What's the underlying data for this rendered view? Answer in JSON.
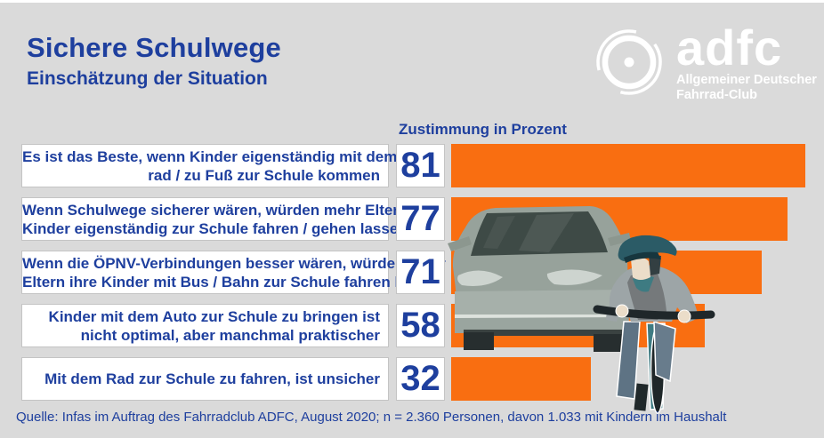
{
  "header": {
    "title": "Sichere Schulwege",
    "subtitle": "Einschätzung der Situation"
  },
  "logo": {
    "brand": "adfc",
    "tagline_line1": "Allgemeiner Deutscher",
    "tagline_line2": "Fahrrad-Club",
    "icon": "bicycle-wheel-icon",
    "color": "#FFFFFF"
  },
  "chart_data": {
    "type": "bar",
    "orientation": "horizontal",
    "title": "Sichere Schulwege",
    "subtitle": "Einschätzung der Situation",
    "value_axis_label": "Zustimmung in Prozent",
    "xlim": [
      0,
      100
    ],
    "grid": false,
    "legend": false,
    "bar_color": "#F96E11",
    "value_label_position": "left-box",
    "categories": [
      "Es ist das Beste, wenn Kinder eigenständig mit dem Fahrrad / zu Fuß zur Schule kommen",
      "Wenn Schulwege sicherer wären, würden mehr Eltern ihre Kinder eigenständig zur Schule fahren / gehen lassen",
      "Wenn die ÖPNV-Verbindungen besser wären, würden mehr Eltern ihre Kinder mit Bus / Bahn zur Schule fahren lassen",
      "Kinder mit dem Auto zur Schule zu bringen ist nicht optimal, aber manchmal praktischer",
      "Mit dem Rad zur Schule zu fahren, ist unsicher"
    ],
    "values": [
      81,
      77,
      71,
      58,
      32
    ],
    "label_lines": [
      [
        "Es ist das Beste, wenn Kinder eigenständig mit dem Fahr-",
        "rad / zu Fuß zur Schule kommen"
      ],
      [
        "Wenn Schulwege sicherer wären, würden mehr Eltern ihre",
        "Kinder eigenständig zur Schule fahren / gehen lassen"
      ],
      [
        "Wenn die ÖPNV-Verbindungen besser wären, würden mehr",
        "Eltern ihre Kinder mit Bus / Bahn zur Schule fahren lassen"
      ],
      [
        "Kinder mit dem Auto zur Schule zu bringen ist",
        "nicht optimal, aber manchmal praktischer"
      ],
      [
        "Mit dem Rad zur Schule zu fahren, ist unsicher"
      ]
    ]
  },
  "footer": {
    "source": "Quelle: Infas im Auftrag des Fahrradclub ADFC, August 2020; n = 2.360 Personen, davon 1.033 mit Kindern im Haushalt"
  },
  "colors": {
    "background": "#DADADA",
    "accent_orange": "#F96E11",
    "text_blue": "#1E3F9E",
    "box_white": "#FFFFFF"
  }
}
